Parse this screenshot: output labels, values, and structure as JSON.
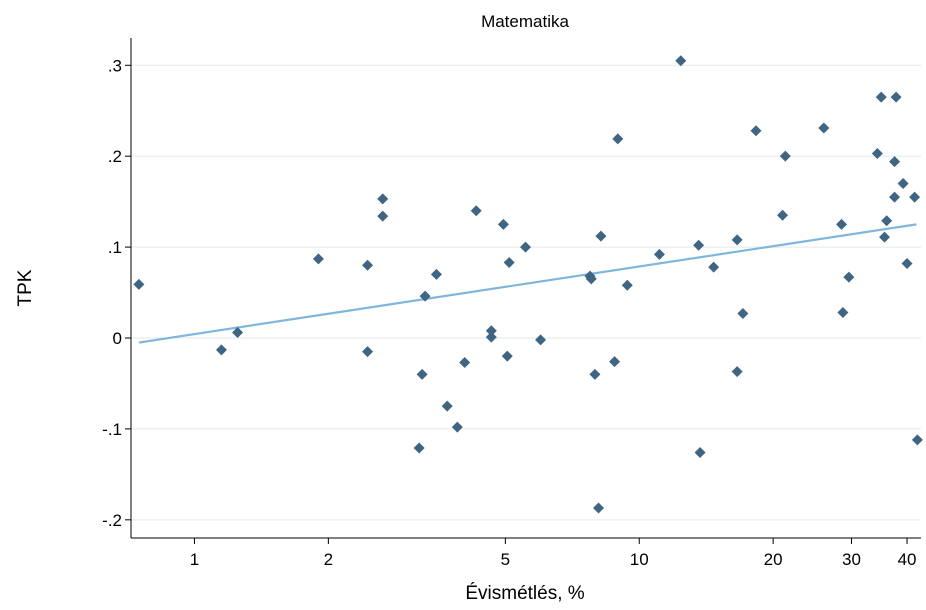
{
  "chart_data": {
    "type": "scatter",
    "title": "Matematika",
    "xlabel": "Évismétlés, %",
    "ylabel": "TPK",
    "x_scale": "log",
    "xlim": [
      0.72,
      43
    ],
    "ylim": [
      -0.22,
      0.33
    ],
    "x_ticks": [
      1,
      2,
      5,
      10,
      20,
      30,
      40
    ],
    "x_tick_labels": [
      "1",
      "2",
      "5",
      "10",
      "20",
      "30",
      "40"
    ],
    "y_ticks": [
      -0.2,
      -0.1,
      0,
      0.1,
      0.2,
      0.3
    ],
    "y_tick_labels": [
      "-.2",
      "-.1",
      "0",
      ".1",
      ".2",
      ".3"
    ],
    "grid": "horizontal",
    "marker_color": "#3f6583",
    "fit_color": "#7fb6dd",
    "fit_line": {
      "x": [
        0.75,
        42
      ],
      "y": [
        -0.005,
        0.125
      ]
    },
    "series": [
      {
        "points": [
          [
            0.75,
            0.059
          ],
          [
            1.15,
            -0.013
          ],
          [
            1.25,
            0.006
          ],
          [
            1.9,
            0.087
          ],
          [
            2.45,
            0.08
          ],
          [
            2.45,
            -0.015
          ],
          [
            2.65,
            0.153
          ],
          [
            2.65,
            0.134
          ],
          [
            3.25,
            -0.04
          ],
          [
            3.2,
            -0.121
          ],
          [
            3.3,
            0.046
          ],
          [
            3.5,
            0.07
          ],
          [
            3.7,
            -0.075
          ],
          [
            3.9,
            -0.098
          ],
          [
            4.05,
            -0.027
          ],
          [
            4.3,
            0.14
          ],
          [
            4.65,
            0.001
          ],
          [
            4.65,
            0.008
          ],
          [
            4.95,
            0.125
          ],
          [
            5.05,
            -0.02
          ],
          [
            5.1,
            0.083
          ],
          [
            5.55,
            0.1
          ],
          [
            6.0,
            -0.002
          ],
          [
            7.75,
            0.068
          ],
          [
            7.8,
            0.065
          ],
          [
            7.95,
            -0.04
          ],
          [
            8.1,
            -0.187
          ],
          [
            8.2,
            0.112
          ],
          [
            8.8,
            -0.026
          ],
          [
            8.95,
            0.219
          ],
          [
            9.4,
            0.058
          ],
          [
            11.1,
            0.092
          ],
          [
            12.4,
            0.305
          ],
          [
            13.6,
            0.102
          ],
          [
            13.7,
            -0.126
          ],
          [
            14.7,
            0.078
          ],
          [
            16.6,
            0.108
          ],
          [
            16.6,
            -0.037
          ],
          [
            17.1,
            0.027
          ],
          [
            18.3,
            0.228
          ],
          [
            21.0,
            0.135
          ],
          [
            21.3,
            0.2
          ],
          [
            26.0,
            0.231
          ],
          [
            28.5,
            0.125
          ],
          [
            28.7,
            0.028
          ],
          [
            29.6,
            0.067
          ],
          [
            34.3,
            0.203
          ],
          [
            35.0,
            0.265
          ],
          [
            35.6,
            0.111
          ],
          [
            36.0,
            0.129
          ],
          [
            37.5,
            0.194
          ],
          [
            37.5,
            0.155
          ],
          [
            37.8,
            0.265
          ],
          [
            39.2,
            0.17
          ],
          [
            40.0,
            0.082
          ],
          [
            41.6,
            0.155
          ],
          [
            42.2,
            -0.112
          ]
        ]
      }
    ]
  }
}
